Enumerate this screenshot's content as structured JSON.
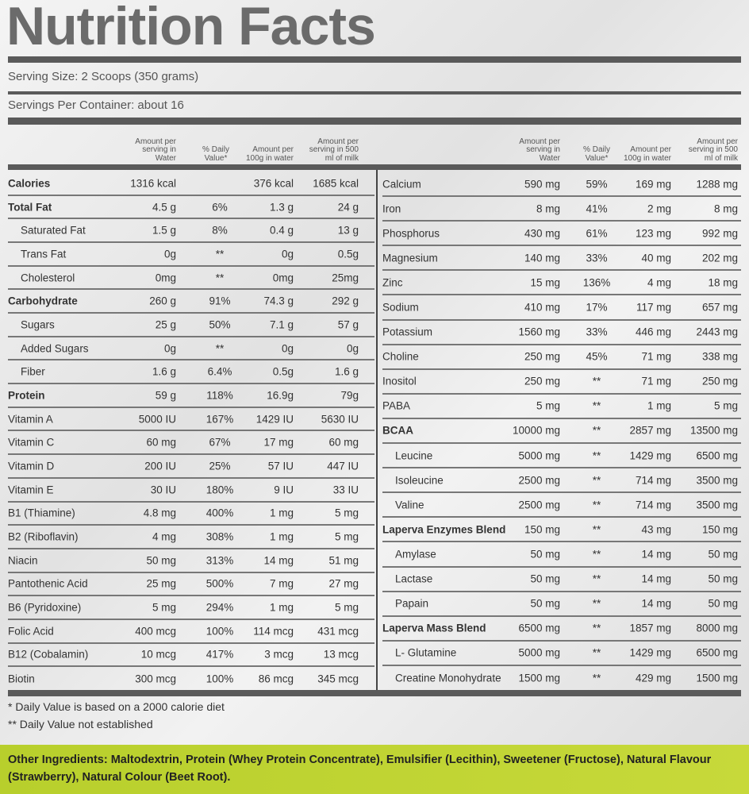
{
  "title": "Nutrition Facts",
  "serving_size": "Serving  Size: 2 Scoops (350 grams)",
  "servings_per_container": "Servings Per Container: about 16",
  "headers": [
    "Amount per serving in Water",
    "% Daily Value*",
    "Amount per 100g in water",
    "Amount per serving in 500 ml of milk"
  ],
  "left_rows": [
    [
      "Calories",
      "1316 kcal",
      "",
      "376 kcal",
      "1685 kcal",
      "b"
    ],
    [
      "Total Fat",
      "4.5 g",
      "6%",
      "1.3 g",
      "24 g",
      "b"
    ],
    [
      "Saturated Fat",
      "1.5 g",
      "8%",
      "0.4 g",
      "13 g",
      "ind"
    ],
    [
      "Trans Fat",
      "0g",
      "**",
      "0g",
      "0.5g",
      "ind"
    ],
    [
      "Cholesterol",
      "0mg",
      "**",
      "0mg",
      "25mg",
      "ind"
    ],
    [
      "Carbohydrate",
      "260 g",
      "91%",
      "74.3 g",
      "292 g",
      "b"
    ],
    [
      "Sugars",
      "25 g",
      "50%",
      "7.1 g",
      "57 g",
      "ind"
    ],
    [
      "Added Sugars",
      "0g",
      "**",
      "0g",
      "0g",
      "ind"
    ],
    [
      "Fiber",
      "1.6 g",
      "6.4%",
      "0.5g",
      "1.6 g",
      "ind"
    ],
    [
      "Protein",
      "59 g",
      "118%",
      "16.9g",
      "79g",
      "b"
    ],
    [
      "Vitamin A",
      "5000 IU",
      "167%",
      "1429 IU",
      "5630 IU",
      ""
    ],
    [
      "Vitamin C",
      "60 mg",
      "67%",
      "17 mg",
      "60 mg",
      ""
    ],
    [
      "Vitamin D",
      "200 IU",
      "25%",
      "57 IU",
      "447 IU",
      ""
    ],
    [
      "Vitamin E",
      "30 IU",
      "180%",
      "9 IU",
      "33 IU",
      ""
    ],
    [
      "B1 (Thiamine)",
      "4.8 mg",
      "400%",
      "1 mg",
      "5 mg",
      ""
    ],
    [
      "B2 (Riboflavin)",
      "4 mg",
      "308%",
      "1 mg",
      "5 mg",
      ""
    ],
    [
      "Niacin",
      "50 mg",
      "313%",
      "14 mg",
      "51 mg",
      ""
    ],
    [
      "Pantothenic Acid",
      "25 mg",
      "500%",
      "7 mg",
      "27 mg",
      ""
    ],
    [
      "B6 (Pyridoxine)",
      "5 mg",
      "294%",
      "1 mg",
      "5 mg",
      ""
    ],
    [
      "Folic Acid",
      "400 mcg",
      "100%",
      "114 mcg",
      "431 mcg",
      ""
    ],
    [
      "B12 (Cobalamin)",
      "10 mcg",
      "417%",
      "3 mcg",
      "13 mcg",
      ""
    ],
    [
      "Biotin",
      "300 mcg",
      "100%",
      "86 mcg",
      "345 mcg",
      ""
    ]
  ],
  "right_rows": [
    [
      "Calcium",
      "590 mg",
      "59%",
      "169 mg",
      "1288 mg",
      ""
    ],
    [
      "Iron",
      "8 mg",
      "41%",
      "2 mg",
      "8 mg",
      ""
    ],
    [
      "Phosphorus",
      "430 mg",
      "61%",
      "123 mg",
      "992 mg",
      ""
    ],
    [
      "Magnesium",
      "140 mg",
      "33%",
      "40 mg",
      "202 mg",
      ""
    ],
    [
      "Zinc",
      "15 mg",
      "136%",
      "4 mg",
      "18 mg",
      ""
    ],
    [
      "Sodium",
      "410 mg",
      "17%",
      "117 mg",
      "657 mg",
      ""
    ],
    [
      "Potassium",
      "1560 mg",
      "33%",
      "446 mg",
      "2443 mg",
      ""
    ],
    [
      "Choline",
      "250 mg",
      "45%",
      "71 mg",
      "338 mg",
      ""
    ],
    [
      "Inositol",
      "250 mg",
      "**",
      "71 mg",
      "250 mg",
      ""
    ],
    [
      "PABA",
      "5 mg",
      "**",
      "1 mg",
      "5 mg",
      ""
    ],
    [
      "BCAA",
      "10000 mg",
      "**",
      "2857 mg",
      "13500 mg",
      "b"
    ],
    [
      "Leucine",
      "5000 mg",
      "**",
      "1429 mg",
      "6500 mg",
      "ind"
    ],
    [
      "Isoleucine",
      "2500 mg",
      "**",
      "714 mg",
      "3500 mg",
      "ind"
    ],
    [
      "Valine",
      "2500 mg",
      "**",
      "714 mg",
      "3500 mg",
      "ind"
    ],
    [
      "Laperva Enzymes Blend",
      "150 mg",
      "**",
      "43 mg",
      "150 mg",
      "b"
    ],
    [
      "Amylase",
      "50 mg",
      "**",
      "14 mg",
      "50 mg",
      "ind"
    ],
    [
      "Lactase",
      "50 mg",
      "**",
      "14 mg",
      "50 mg",
      "ind"
    ],
    [
      "Papain",
      "50 mg",
      "**",
      "14 mg",
      "50 mg",
      "ind"
    ],
    [
      "Laperva Mass Blend",
      "6500 mg",
      "**",
      "1857 mg",
      "8000 mg",
      "b"
    ],
    [
      "L- Glutamine",
      "5000 mg",
      "**",
      "1429 mg",
      "6500 mg",
      "ind"
    ],
    [
      "Creatine Monohydrate",
      "1500 mg",
      "**",
      "429 mg",
      "1500 mg",
      "ind"
    ]
  ],
  "footnotes": [
    "* Daily Value is based on a 2000 calorie diet",
    "** Daily Value not established"
  ],
  "other_ingredients": "Other Ingredients: Maltodextrin, Protein (Whey Protein Concentrate), Emulsifier (Lecithin), Sweetener (Fructose), Natural Flavour (Strawberry), Natural Colour (Beet Root)."
}
